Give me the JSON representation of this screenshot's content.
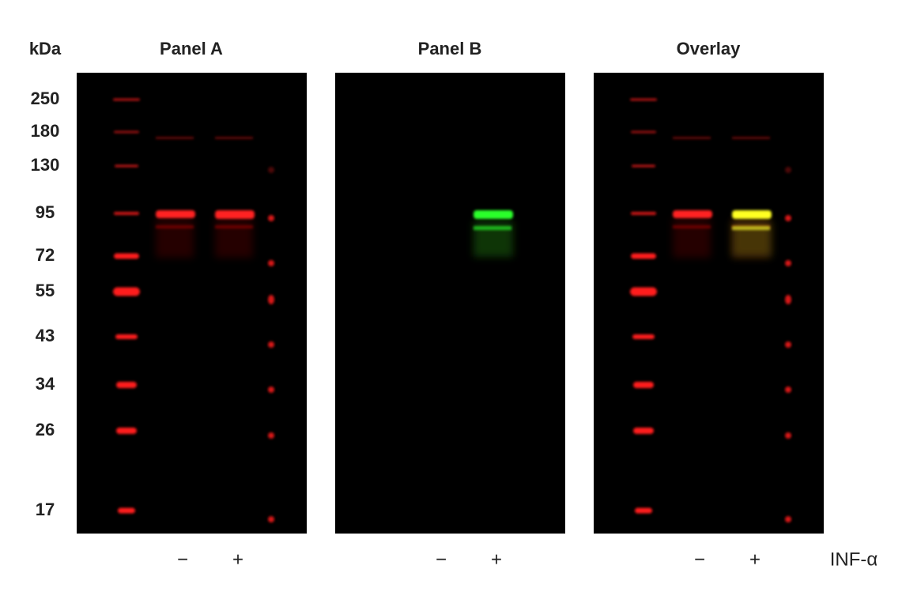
{
  "axis_label": "kDa",
  "markers": [
    "250",
    "180",
    "130",
    "95",
    "72",
    "55",
    "43",
    "34",
    "26",
    "17"
  ],
  "panels": [
    {
      "title": "Panel A",
      "lanes": [
        "−",
        "+"
      ]
    },
    {
      "title": "Panel B",
      "lanes": [
        "−",
        "+"
      ]
    },
    {
      "title": "Overlay",
      "lanes": [
        "−",
        "+"
      ]
    }
  ],
  "treatment": "INF-α"
}
